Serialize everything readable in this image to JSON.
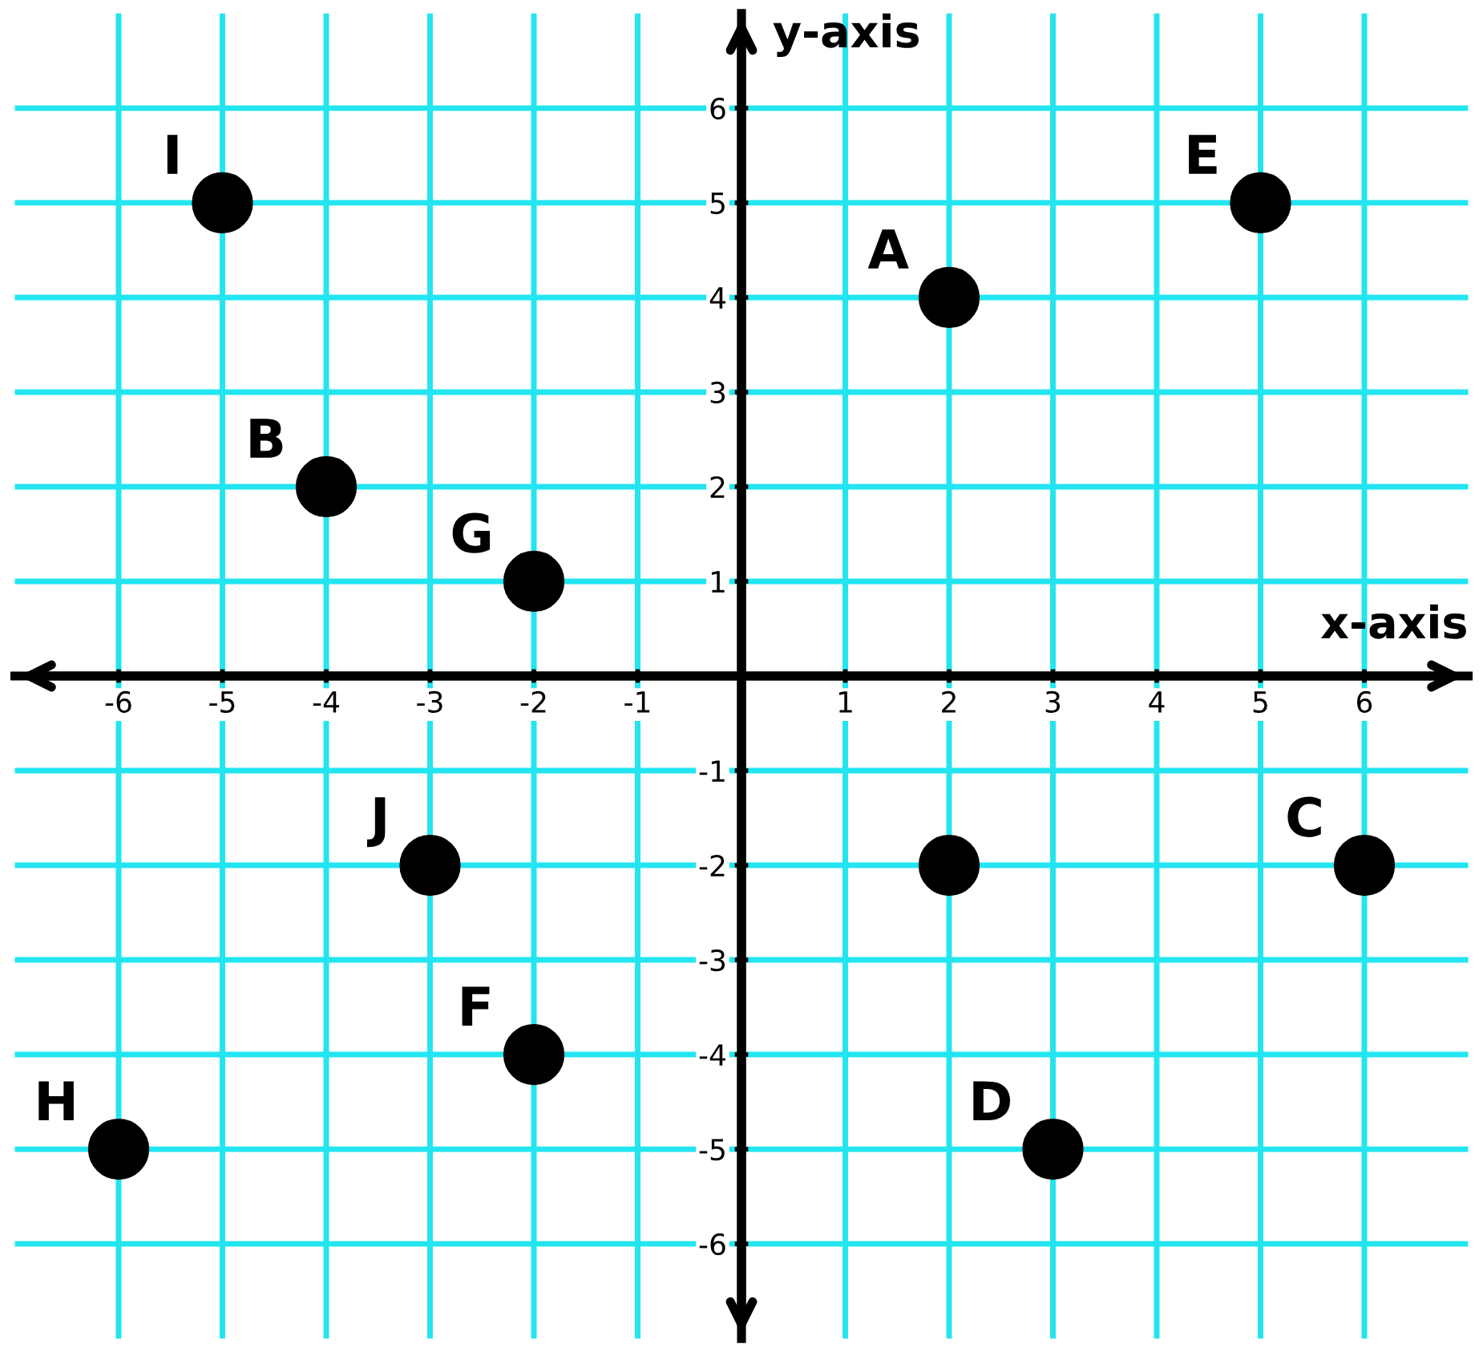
{
  "chart_data": {
    "type": "scatter",
    "xlabel": "x-axis",
    "ylabel": "y-axis",
    "x": [
      -5,
      5,
      2,
      -4,
      -2,
      -3,
      2,
      6,
      -2,
      -6,
      3
    ],
    "values": [
      5,
      5,
      4,
      2,
      1,
      -2,
      -2,
      -2,
      -4,
      -5,
      -5
    ],
    "color": "#000000",
    "marker": "circle",
    "xlim": [
      -7,
      7
    ],
    "ylim": [
      -7,
      7
    ],
    "xticks": [
      -6,
      -5,
      -4,
      -3,
      -2,
      -1,
      1,
      2,
      3,
      4,
      5,
      6
    ],
    "yticks": [
      -6,
      -5,
      -4,
      -3,
      -2,
      -1,
      1,
      2,
      3,
      4,
      5,
      6
    ],
    "grid": true,
    "annotations": [
      {
        "text": "I",
        "x": -5,
        "y": 5
      },
      {
        "text": "E",
        "x": 5,
        "y": 5
      },
      {
        "text": "A",
        "x": 2,
        "y": 4
      },
      {
        "text": "B",
        "x": -4,
        "y": 2
      },
      {
        "text": "G",
        "x": -2,
        "y": 1
      },
      {
        "text": "J",
        "x": -3,
        "y": -2
      },
      {
        "text": "C",
        "x": 6,
        "y": -2
      },
      {
        "text": "F",
        "x": -2,
        "y": -4
      },
      {
        "text": "H",
        "x": -6,
        "y": -5
      },
      {
        "text": "D",
        "x": 3,
        "y": -5
      }
    ]
  }
}
